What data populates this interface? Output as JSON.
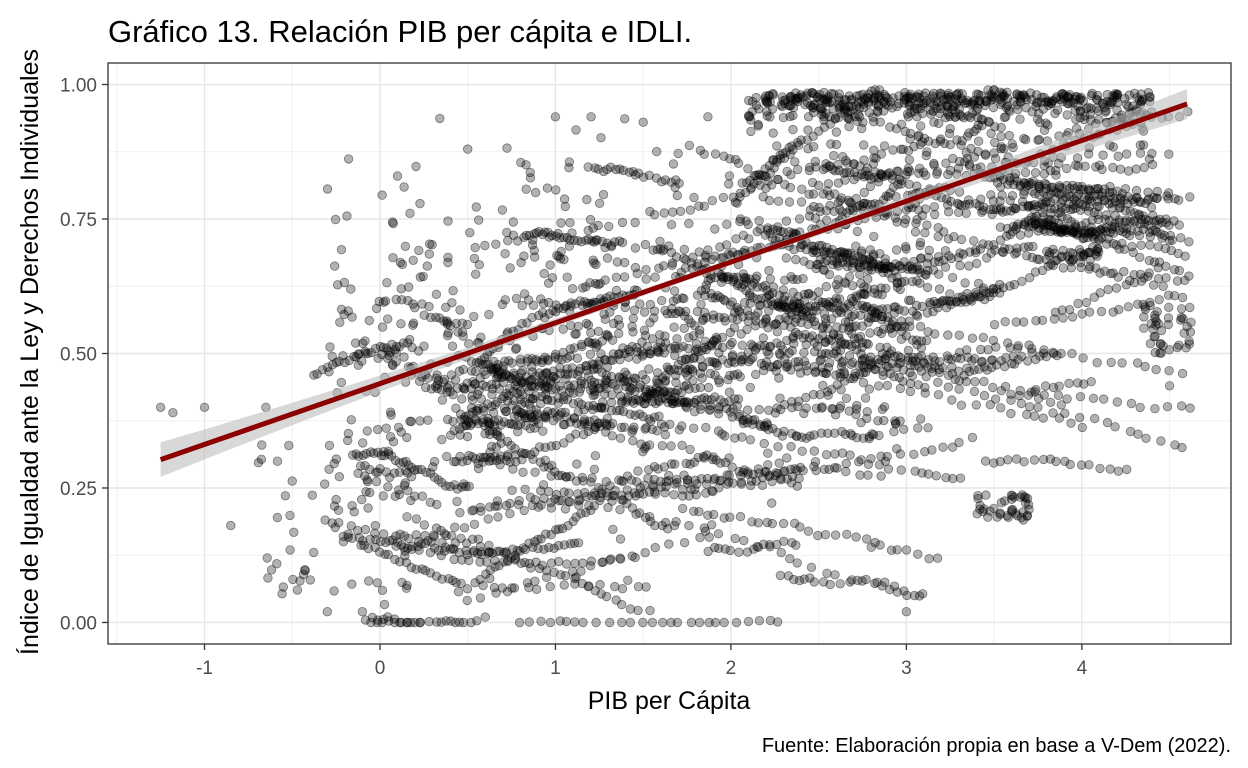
{
  "chart_data": {
    "type": "scatter",
    "title": "Gráfico 13. Relación PIB per cápita e IDLI.",
    "xlabel": "PIB per Cápita",
    "ylabel": "Índice de Igualdad ante la Ley y Derechos Individuales",
    "caption": "Fuente: Elaboración propia en base a V-Dem (2022).",
    "xlim": [
      -1.55,
      4.85
    ],
    "ylim": [
      -0.04,
      1.04
    ],
    "x_ticks": [
      -1,
      0,
      1,
      2,
      3,
      4
    ],
    "x_tick_labels": [
      "-1",
      "0",
      "1",
      "2",
      "3",
      "4"
    ],
    "y_ticks": [
      0,
      0.25,
      0.5,
      0.75,
      1
    ],
    "y_tick_labels": [
      "0.00",
      "0.25",
      "0.50",
      "0.75",
      "1.00"
    ],
    "grid": true,
    "point_color": "#000000",
    "point_opacity": 0.3,
    "fit_line": {
      "method": "linear",
      "x_range": [
        -1.25,
        4.6
      ],
      "intercept": 0.444,
      "slope": 0.113,
      "color": "#8b0000",
      "se_band_color": "#bebebe"
    },
    "points_sample": [
      {
        "x": -1.25,
        "y": 0.4
      },
      {
        "x": -1.18,
        "y": 0.39
      },
      {
        "x": -1.0,
        "y": 0.4
      },
      {
        "x": -0.85,
        "y": 0.18
      },
      {
        "x": -0.65,
        "y": 0.4
      },
      {
        "x": -0.3,
        "y": 0.02
      },
      {
        "x": -0.1,
        "y": 0.02
      },
      {
        "x": 0.1,
        "y": 0.83
      },
      {
        "x": 0.5,
        "y": 0.88
      },
      {
        "x": 0.6,
        "y": 0.01
      },
      {
        "x": 1.0,
        "y": 0.94
      },
      {
        "x": 1.5,
        "y": 0.93
      },
      {
        "x": 2.2,
        "y": 0.97
      },
      {
        "x": 2.8,
        "y": 0.14
      },
      {
        "x": 3.0,
        "y": 0.02
      },
      {
        "x": 3.5,
        "y": 0.99
      },
      {
        "x": 3.8,
        "y": 0.69
      },
      {
        "x": 4.2,
        "y": 0.98
      },
      {
        "x": 4.5,
        "y": 0.44
      },
      {
        "x": 4.6,
        "y": 0.55
      }
    ]
  }
}
